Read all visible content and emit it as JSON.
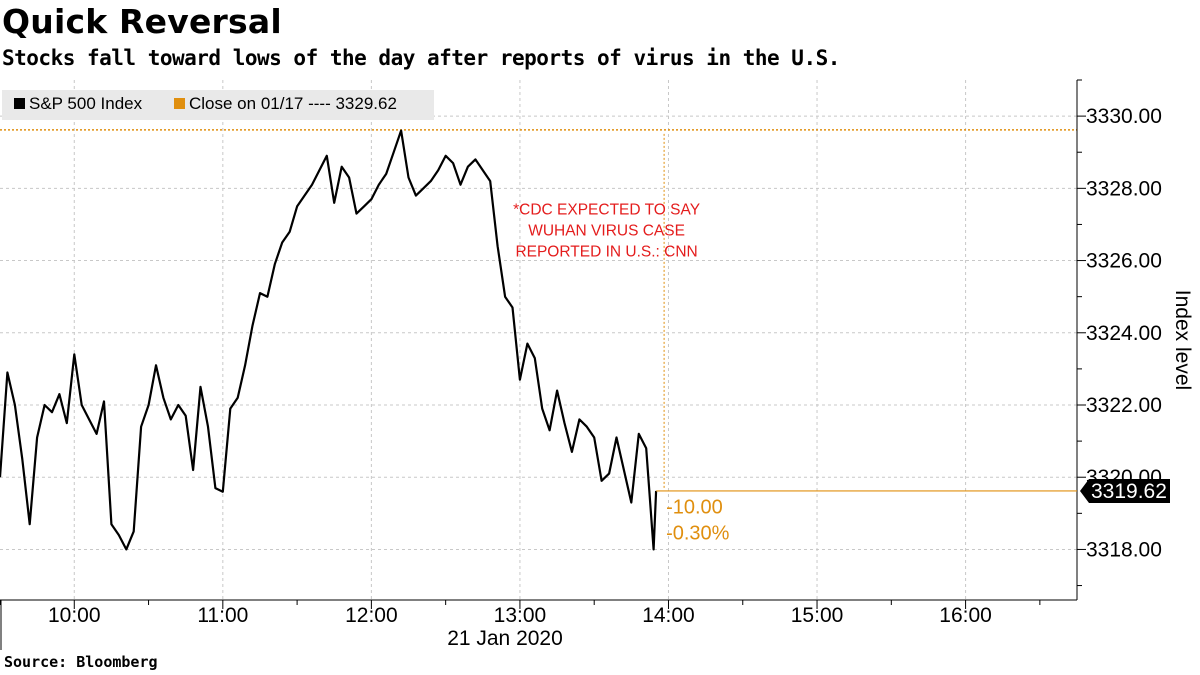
{
  "title": "Quick Reversal",
  "subtitle": "Stocks fall toward lows of the day after reports of virus in the U.S.",
  "source": "Source: Bloomberg",
  "colors": {
    "series": "#000000",
    "reference": "#e08f0f",
    "annotation": "#e41c1c",
    "grid": "#c8c8c8"
  },
  "chart_data": {
    "type": "line",
    "xlabel": "21 Jan 2020",
    "ylabel": "Index level",
    "x_ticks": [
      "10:00",
      "11:00",
      "12:00",
      "13:00",
      "14:00",
      "15:00",
      "16:00"
    ],
    "y_ticks": [
      "3318.00",
      "3320.00",
      "3322.00",
      "3324.00",
      "3326.00",
      "3328.00",
      "3330.00"
    ],
    "xlim": [
      "09:30",
      "16:45"
    ],
    "ylim": [
      3316.6,
      3331.0
    ],
    "grid": true,
    "legend_position": "top-left",
    "legend": [
      {
        "label": "S&P 500 Index",
        "color": "#000000"
      },
      {
        "label": "Close on 01/17 ---- 3329.62",
        "color": "#e08f0f"
      }
    ],
    "series": [
      {
        "name": "S&P 500 Index",
        "x": [
          "09:30",
          "09:33",
          "09:36",
          "09:39",
          "09:42",
          "09:45",
          "09:48",
          "09:51",
          "09:54",
          "09:57",
          "10:00",
          "10:03",
          "10:06",
          "10:09",
          "10:12",
          "10:15",
          "10:18",
          "10:21",
          "10:24",
          "10:27",
          "10:30",
          "10:33",
          "10:36",
          "10:39",
          "10:42",
          "10:45",
          "10:48",
          "10:51",
          "10:54",
          "10:57",
          "11:00",
          "11:03",
          "11:06",
          "11:09",
          "11:12",
          "11:15",
          "11:18",
          "11:21",
          "11:24",
          "11:27",
          "11:30",
          "11:33",
          "11:36",
          "11:39",
          "11:42",
          "11:45",
          "11:48",
          "11:51",
          "11:54",
          "11:57",
          "12:00",
          "12:03",
          "12:06",
          "12:09",
          "12:12",
          "12:15",
          "12:18",
          "12:21",
          "12:24",
          "12:27",
          "12:30",
          "12:33",
          "12:36",
          "12:39",
          "12:42",
          "12:45",
          "12:48",
          "12:51",
          "12:54",
          "12:57",
          "13:00",
          "13:03",
          "13:06",
          "13:09",
          "13:12",
          "13:15",
          "13:18",
          "13:21",
          "13:24",
          "13:27",
          "13:30",
          "13:33",
          "13:36",
          "13:39",
          "13:42",
          "13:45",
          "13:48",
          "13:51",
          "13:54",
          "13:55"
        ],
        "values": [
          3320.0,
          3322.9,
          3322.0,
          3320.5,
          3318.7,
          3321.1,
          3322.0,
          3321.8,
          3322.3,
          3321.5,
          3323.4,
          3322.0,
          3321.6,
          3321.2,
          3322.1,
          3318.7,
          3318.4,
          3318.0,
          3318.5,
          3321.4,
          3322.0,
          3323.1,
          3322.2,
          3321.6,
          3322.0,
          3321.7,
          3320.2,
          3322.5,
          3321.4,
          3319.7,
          3319.6,
          3321.9,
          3322.2,
          3323.1,
          3324.2,
          3325.1,
          3325.0,
          3325.9,
          3326.5,
          3326.8,
          3327.5,
          3327.8,
          3328.1,
          3328.5,
          3328.9,
          3327.6,
          3328.6,
          3328.3,
          3327.3,
          3327.5,
          3327.7,
          3328.1,
          3328.4,
          3329.0,
          3329.6,
          3328.3,
          3327.8,
          3328.0,
          3328.2,
          3328.5,
          3328.9,
          3328.7,
          3328.1,
          3328.6,
          3328.8,
          3328.5,
          3328.2,
          3326.4,
          3325.0,
          3324.7,
          3322.7,
          3323.7,
          3323.3,
          3321.9,
          3321.3,
          3322.4,
          3321.5,
          3320.7,
          3321.6,
          3321.4,
          3321.1,
          3319.9,
          3320.1,
          3321.1,
          3320.2,
          3319.3,
          3321.2,
          3320.8,
          3318.0,
          3319.62
        ]
      }
    ],
    "reference_line": {
      "label": "Close on 01/17",
      "value": 3329.62
    },
    "last_value_label": "3319.62",
    "change_labels": [
      "-10.00",
      "-0.30%"
    ],
    "annotation": {
      "lines": [
        "*CDC EXPECTED TO SAY",
        "WUHAN VIRUS CASE",
        "REPORTED IN U.S.: CNN"
      ],
      "x": "13:35",
      "y": 3326.7
    }
  }
}
